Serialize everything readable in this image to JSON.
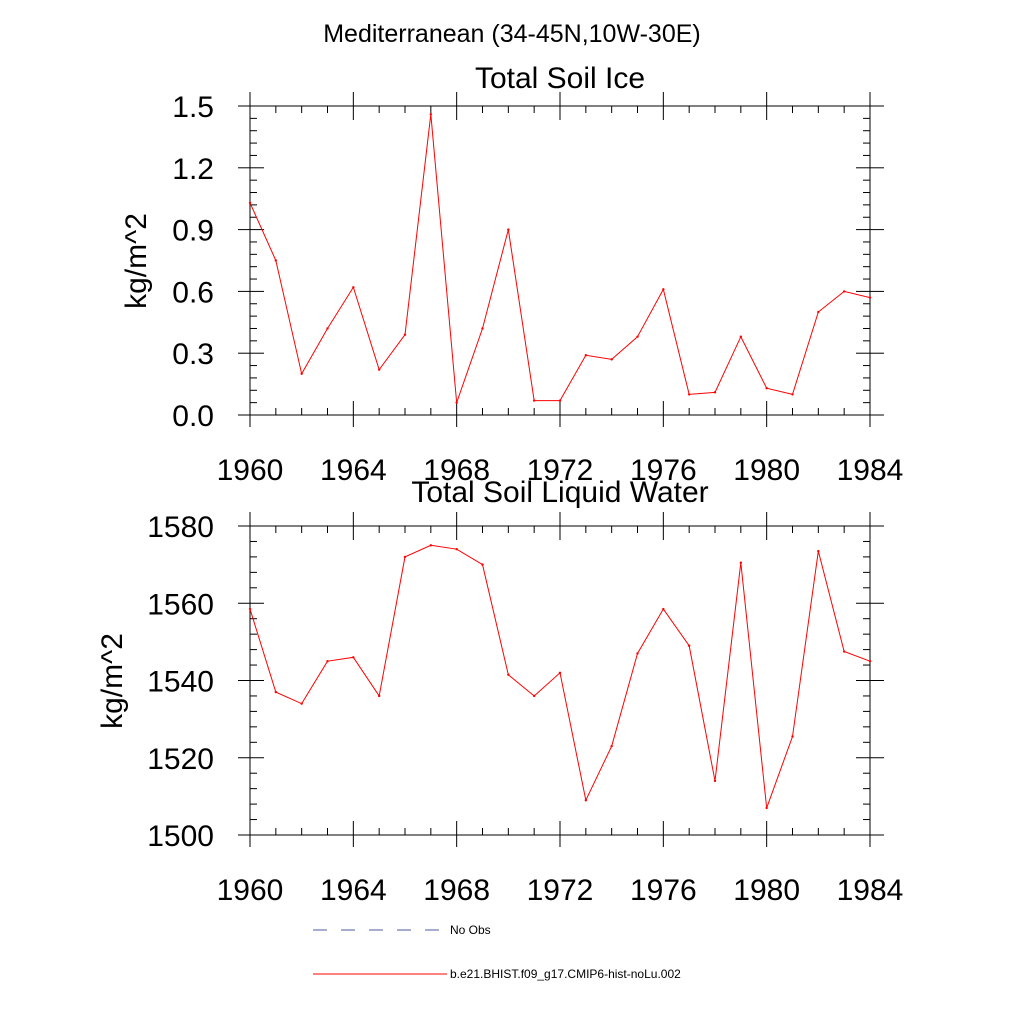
{
  "figure": {
    "title": "Mediterranean (34-45N,10W-30E)"
  },
  "chart_data": [
    {
      "type": "line",
      "title": "Total Soil Ice",
      "xlabel": "",
      "ylabel": "kg/m^2",
      "xlim": [
        1960,
        1984
      ],
      "ylim": [
        0,
        1.5
      ],
      "x_ticks": [
        "1960",
        "1964",
        "1968",
        "1972",
        "1976",
        "1980",
        "1984"
      ],
      "y_ticks": [
        "0.0",
        "0.3",
        "0.6",
        "0.9",
        "1.2",
        "1.5"
      ],
      "x": [
        1960,
        1961,
        1962,
        1963,
        1964,
        1965,
        1966,
        1967,
        1968,
        1969,
        1970,
        1971,
        1972,
        1973,
        1974,
        1975,
        1976,
        1977,
        1978,
        1979,
        1980,
        1981,
        1982,
        1983,
        1984
      ],
      "series": [
        {
          "name": "b.e21.BHIST.f09_g17.CMIP6-hist-noLu.002",
          "color": "#ff0000",
          "values": [
            1.03,
            0.75,
            0.2,
            0.42,
            0.62,
            0.22,
            0.39,
            1.46,
            0.06,
            0.42,
            0.9,
            0.07,
            0.07,
            0.29,
            0.27,
            0.38,
            0.61,
            0.1,
            0.11,
            0.38,
            0.13,
            0.1,
            0.5,
            0.6,
            0.57
          ]
        }
      ]
    },
    {
      "type": "line",
      "title": "Total Soil Liquid Water",
      "xlabel": "",
      "ylabel": "kg/m^2",
      "xlim": [
        1960,
        1984
      ],
      "ylim": [
        1500,
        1580
      ],
      "x_ticks": [
        "1960",
        "1964",
        "1968",
        "1972",
        "1976",
        "1980",
        "1984"
      ],
      "y_ticks": [
        "1500",
        "1520",
        "1540",
        "1560",
        "1580"
      ],
      "x": [
        1960,
        1961,
        1962,
        1963,
        1964,
        1965,
        1966,
        1967,
        1968,
        1969,
        1970,
        1971,
        1972,
        1973,
        1974,
        1975,
        1976,
        1977,
        1978,
        1979,
        1980,
        1981,
        1982,
        1983,
        1984
      ],
      "series": [
        {
          "name": "b.e21.BHIST.f09_g17.CMIP6-hist-noLu.002",
          "color": "#ff0000",
          "values": [
            1558.5,
            1537,
            1534,
            1545,
            1546,
            1536,
            1572,
            1575,
            1574,
            1570,
            1541.5,
            1536,
            1542,
            1509,
            1523,
            1547,
            1558.5,
            1549,
            1514,
            1570.5,
            1507,
            1525.5,
            1573.5,
            1547.5,
            1545
          ]
        }
      ]
    }
  ],
  "legend": {
    "items": [
      {
        "label": "No Obs",
        "color": "#4b5a9a",
        "style": "dashed"
      },
      {
        "label": "b.e21.BHIST.f09_g17.CMIP6-hist-noLu.002",
        "color": "#ff0000",
        "style": "solid"
      }
    ]
  }
}
